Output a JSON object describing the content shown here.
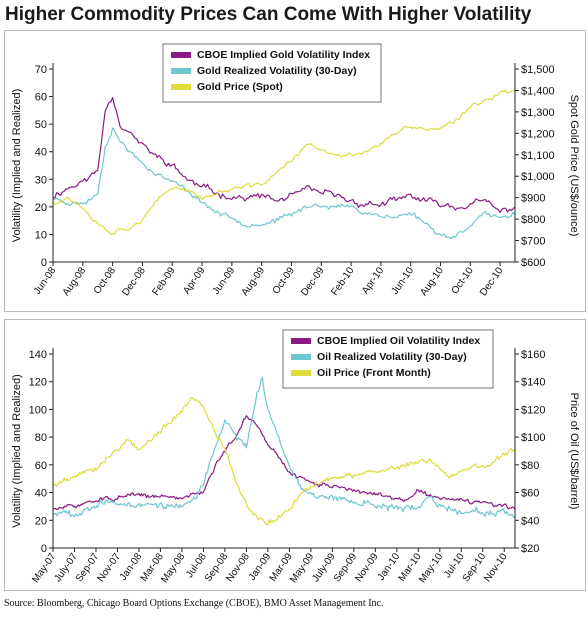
{
  "title": "Higher Commodity Prices Can Come With Higher Volatility",
  "source": "Source: Bloomberg, Chicago Board Options Exchange (CBOE), BMO Asset Management Inc.",
  "colors": {
    "implied": "#8b1a86",
    "realized": "#6fc6cf",
    "price": "#dcdc3a",
    "axis": "#222222"
  },
  "chart_data": [
    {
      "type": "line",
      "title": "",
      "ylabel": "Volatility (Implied and Realized)",
      "y2label": "Spot Gold Price (US$/ounce)",
      "ylim": [
        0,
        70
      ],
      "y2lim": [
        600,
        1500
      ],
      "yticks": [
        "0",
        "10",
        "20",
        "30",
        "40",
        "50",
        "60",
        "70"
      ],
      "y2ticks": [
        "$600",
        "$700",
        "$800",
        "$900",
        "$1,000",
        "$1,100",
        "$1,200",
        "$1,300",
        "$1,400",
        "$1,500"
      ],
      "xticks": [
        "Jun-08",
        "Aug-08",
        "Oct-08",
        "Dec-08",
        "Feb-09",
        "Apr-09",
        "Jun-09",
        "Aug-09",
        "Oct-09",
        "Dec-09",
        "Feb-10",
        "Apr-10",
        "Jun-10",
        "Aug-10",
        "Oct-10",
        "Dec-10"
      ],
      "xtick_t": [
        0,
        2,
        4,
        6,
        8,
        10,
        12,
        14,
        16,
        18,
        20,
        22,
        24,
        26,
        28,
        30
      ],
      "x_t_range": [
        0,
        31
      ],
      "legend_position": "top-center",
      "series": [
        {
          "name": "CBOE Implied Gold Volatility Index",
          "axis": "left",
          "color": "#8b1a86",
          "noise": 1.5,
          "seed": 11,
          "points": [
            [
              0,
              24
            ],
            [
              1,
              27
            ],
            [
              2,
              29
            ],
            [
              3,
              33
            ],
            [
              3.5,
              55
            ],
            [
              4,
              61
            ],
            [
              4.5,
              50
            ],
            [
              5,
              48
            ],
            [
              6,
              42
            ],
            [
              7,
              38
            ],
            [
              8,
              35
            ],
            [
              9,
              30
            ],
            [
              10,
              27
            ],
            [
              11,
              25
            ],
            [
              12,
              24
            ],
            [
              13,
              23
            ],
            [
              14,
              24
            ],
            [
              15,
              22
            ],
            [
              16,
              24
            ],
            [
              17,
              26
            ],
            [
              18,
              25
            ],
            [
              19,
              24
            ],
            [
              20,
              22
            ],
            [
              21,
              21
            ],
            [
              22,
              21
            ],
            [
              23,
              22
            ],
            [
              24,
              24
            ],
            [
              25,
              22
            ],
            [
              26,
              21
            ],
            [
              27,
              20
            ],
            [
              28,
              21
            ],
            [
              29,
              22
            ],
            [
              30,
              18
            ],
            [
              31,
              20
            ]
          ]
        },
        {
          "name": "Gold Realized Volatility (30-Day)",
          "axis": "left",
          "color": "#6fc6cf",
          "noise": 1.2,
          "seed": 23,
          "points": [
            [
              0,
              23
            ],
            [
              1,
              22
            ],
            [
              2,
              21
            ],
            [
              3,
              25
            ],
            [
              3.5,
              42
            ],
            [
              4,
              49
            ],
            [
              4.5,
              44
            ],
            [
              5,
              41
            ],
            [
              6,
              36
            ],
            [
              7,
              32
            ],
            [
              8,
              29
            ],
            [
              9,
              26
            ],
            [
              10,
              22
            ],
            [
              11,
              18
            ],
            [
              12,
              16
            ],
            [
              13,
              14
            ],
            [
              14,
              14
            ],
            [
              15,
              15
            ],
            [
              16,
              17
            ],
            [
              17,
              20
            ],
            [
              18,
              21
            ],
            [
              19,
              20
            ],
            [
              20,
              20
            ],
            [
              21,
              18
            ],
            [
              22,
              17
            ],
            [
              23,
              16
            ],
            [
              24,
              18
            ],
            [
              25,
              14
            ],
            [
              26,
              10
            ],
            [
              27,
              9
            ],
            [
              28,
              14
            ],
            [
              29,
              18
            ],
            [
              30,
              15
            ],
            [
              31,
              17
            ]
          ]
        },
        {
          "name": "Gold Price (Spot)",
          "axis": "right",
          "color": "#dcdc3a",
          "noise": 14,
          "seed": 37,
          "points": [
            [
              0,
              880
            ],
            [
              1,
              900
            ],
            [
              2,
              860
            ],
            [
              2.5,
              820
            ],
            [
              3,
              780
            ],
            [
              4,
              740
            ],
            [
              5,
              760
            ],
            [
              6,
              800
            ],
            [
              7,
              880
            ],
            [
              8,
              950
            ],
            [
              9,
              940
            ],
            [
              10,
              900
            ],
            [
              11,
              920
            ],
            [
              12,
              940
            ],
            [
              13,
              950
            ],
            [
              14,
              960
            ],
            [
              15,
              1020
            ],
            [
              16,
              1070
            ],
            [
              17,
              1150
            ],
            [
              18,
              1120
            ],
            [
              19,
              1090
            ],
            [
              20,
              1100
            ],
            [
              21,
              1120
            ],
            [
              22,
              1150
            ],
            [
              23,
              1200
            ],
            [
              24,
              1230
            ],
            [
              25,
              1220
            ],
            [
              26,
              1220
            ],
            [
              27,
              1250
            ],
            [
              28,
              1320
            ],
            [
              29,
              1360
            ],
            [
              30,
              1390
            ],
            [
              31,
              1400
            ]
          ]
        }
      ]
    },
    {
      "type": "line",
      "title": "",
      "ylabel": "Volatility (Implied and Realized)",
      "y2label": "Price of Oil (US$/barrel)",
      "ylim": [
        0,
        140
      ],
      "y2lim": [
        20,
        160
      ],
      "yticks": [
        "0",
        "20",
        "40",
        "60",
        "80",
        "100",
        "120",
        "140"
      ],
      "y2ticks": [
        "$20",
        "$40",
        "$60",
        "$80",
        "$100",
        "$120",
        "$140",
        "$160"
      ],
      "xticks": [
        "May-07",
        "July-07",
        "Sep-07",
        "Nov-07",
        "Jan-08",
        "Mar-08",
        "May-08",
        "Jul-08",
        "Sep-08",
        "Nov-08",
        "Jan-09",
        "Mar-09",
        "May-09",
        "July-09",
        "Sep-09",
        "Nov-09",
        "Jan-10",
        "Mar-10",
        "May-10",
        "Jul-10",
        "Sep-10",
        "Nov-10"
      ],
      "xtick_t": [
        0,
        2,
        4,
        6,
        8,
        10,
        12,
        14,
        16,
        18,
        20,
        22,
        24,
        26,
        28,
        30,
        32,
        34,
        36,
        38,
        40,
        42
      ],
      "x_t_range": [
        0,
        43
      ],
      "legend_position": "top-center",
      "series": [
        {
          "name": "CBOE Implied Oil Volatility Index",
          "axis": "left",
          "color": "#8b1a86",
          "noise": 2,
          "seed": 51,
          "points": [
            [
              0,
              28
            ],
            [
              2,
              30
            ],
            [
              4,
              35
            ],
            [
              6,
              36
            ],
            [
              8,
              38
            ],
            [
              10,
              37
            ],
            [
              12,
              36
            ],
            [
              14,
              42
            ],
            [
              15,
              58
            ],
            [
              16,
              70
            ],
            [
              17,
              80
            ],
            [
              18,
              96
            ],
            [
              19,
              88
            ],
            [
              20,
              75
            ],
            [
              21,
              65
            ],
            [
              22,
              55
            ],
            [
              23,
              50
            ],
            [
              24,
              48
            ],
            [
              25,
              46
            ],
            [
              26,
              45
            ],
            [
              28,
              42
            ],
            [
              30,
              38
            ],
            [
              32,
              36
            ],
            [
              33,
              35
            ],
            [
              34,
              42
            ],
            [
              35,
              38
            ],
            [
              36,
              36
            ],
            [
              38,
              34
            ],
            [
              40,
              32
            ],
            [
              42,
              30
            ],
            [
              43,
              28
            ]
          ]
        },
        {
          "name": "Oil Realized Volatility (30-Day)",
          "axis": "left",
          "color": "#6fc6cf",
          "noise": 3,
          "seed": 67,
          "points": [
            [
              0,
              25
            ],
            [
              1,
              28
            ],
            [
              2,
              22
            ],
            [
              3,
              30
            ],
            [
              5,
              33
            ],
            [
              7,
              30
            ],
            [
              9,
              32
            ],
            [
              11,
              30
            ],
            [
              13,
              33
            ],
            [
              14,
              45
            ],
            [
              15,
              70
            ],
            [
              16,
              92
            ],
            [
              17,
              80
            ],
            [
              18,
              75
            ],
            [
              19,
              110
            ],
            [
              19.5,
              120
            ],
            [
              20,
              100
            ],
            [
              21,
              80
            ],
            [
              22,
              60
            ],
            [
              23,
              45
            ],
            [
              24,
              40
            ],
            [
              26,
              36
            ],
            [
              28,
              35
            ],
            [
              30,
              30
            ],
            [
              32,
              30
            ],
            [
              34,
              28
            ],
            [
              35,
              38
            ],
            [
              36,
              30
            ],
            [
              38,
              27
            ],
            [
              40,
              26
            ],
            [
              42,
              24
            ],
            [
              43,
              22
            ]
          ]
        },
        {
          "name": "Oil Price (Front Month)",
          "axis": "right",
          "color": "#dcdc3a",
          "noise": 2.5,
          "seed": 79,
          "points": [
            [
              0,
              65
            ],
            [
              2,
              72
            ],
            [
              4,
              78
            ],
            [
              6,
              92
            ],
            [
              7,
              98
            ],
            [
              8,
              92
            ],
            [
              10,
              104
            ],
            [
              12,
              120
            ],
            [
              13,
              130
            ],
            [
              14,
              120
            ],
            [
              15,
              105
            ],
            [
              16,
              90
            ],
            [
              17,
              68
            ],
            [
              18,
              52
            ],
            [
              19,
              42
            ],
            [
              20,
              38
            ],
            [
              21,
              42
            ],
            [
              22,
              48
            ],
            [
              23,
              58
            ],
            [
              24,
              66
            ],
            [
              25,
              68
            ],
            [
              26,
              70
            ],
            [
              28,
              72
            ],
            [
              30,
              76
            ],
            [
              32,
              78
            ],
            [
              34,
              82
            ],
            [
              35,
              84
            ],
            [
              36,
              76
            ],
            [
              37,
              72
            ],
            [
              38,
              76
            ],
            [
              40,
              78
            ],
            [
              41,
              82
            ],
            [
              42,
              88
            ],
            [
              43,
              90
            ]
          ]
        }
      ]
    }
  ]
}
